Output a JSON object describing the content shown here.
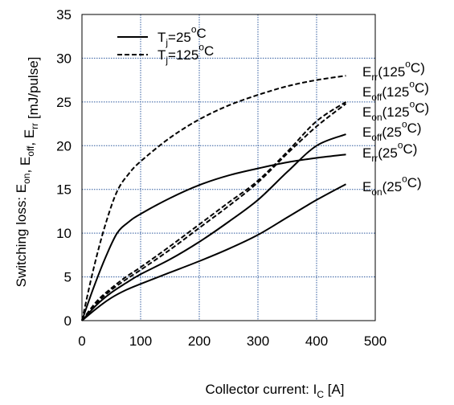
{
  "chart_data": {
    "type": "line",
    "xlabel": "Collector current: I_C [A]",
    "ylabel": "Switching loss: E_on, E_off, E_rr [mJ/pulse]",
    "xlim": [
      0,
      500
    ],
    "ylim": [
      0,
      35
    ],
    "x_ticks": [
      0,
      100,
      200,
      300,
      400,
      500
    ],
    "y_ticks": [
      0,
      5,
      10,
      15,
      20,
      25,
      30,
      35
    ],
    "grid": true,
    "legend_position": "top-left",
    "legend": [
      {
        "text": "Tj=25°C",
        "style": "solid"
      },
      {
        "text": "Tj=125°C",
        "style": "dashed"
      }
    ],
    "series": [
      {
        "label": "Err(125°C)",
        "style": "dashed",
        "x": [
          0,
          20,
          40,
          60,
          80,
          100,
          150,
          200,
          250,
          300,
          350,
          400,
          450
        ],
        "y": [
          0,
          6.0,
          11.0,
          14.8,
          16.8,
          18.2,
          20.9,
          23.0,
          24.6,
          25.8,
          26.8,
          27.5,
          28.0
        ]
      },
      {
        "label": "Eoff(125°C)",
        "style": "dashed",
        "x": [
          0,
          25,
          50,
          75,
          100,
          150,
          200,
          250,
          300,
          350,
          400,
          450
        ],
        "y": [
          0,
          2.2,
          3.7,
          5.0,
          6.1,
          8.5,
          11.0,
          13.5,
          16.0,
          19.3,
          22.8,
          25.0
        ]
      },
      {
        "label": "Eon(125°C)",
        "style": "dashed",
        "x": [
          0,
          25,
          50,
          75,
          100,
          150,
          200,
          250,
          300,
          350,
          400,
          450
        ],
        "y": [
          0,
          2.0,
          3.5,
          4.7,
          5.8,
          8.1,
          10.6,
          13.1,
          15.8,
          19.1,
          22.2,
          24.8
        ]
      },
      {
        "label": "Eoff(25°C)",
        "style": "solid",
        "x": [
          0,
          25,
          50,
          75,
          100,
          150,
          200,
          250,
          300,
          350,
          400,
          450
        ],
        "y": [
          0,
          1.8,
          3.2,
          4.3,
          5.3,
          7.0,
          9.0,
          11.3,
          13.8,
          17.0,
          20.0,
          21.3
        ]
      },
      {
        "label": "Err(25°C)",
        "style": "solid",
        "x": [
          0,
          20,
          40,
          60,
          80,
          100,
          150,
          200,
          250,
          300,
          350,
          400,
          450
        ],
        "y": [
          0,
          3.8,
          7.2,
          10.0,
          11.3,
          12.2,
          14.0,
          15.5,
          16.6,
          17.4,
          18.1,
          18.6,
          19.0
        ]
      },
      {
        "label": "Eon(25°C)",
        "style": "solid",
        "x": [
          0,
          25,
          50,
          75,
          100,
          150,
          200,
          250,
          300,
          350,
          400,
          450
        ],
        "y": [
          0,
          1.4,
          2.6,
          3.5,
          4.2,
          5.5,
          6.8,
          8.2,
          9.8,
          11.8,
          13.8,
          15.6
        ]
      }
    ]
  }
}
